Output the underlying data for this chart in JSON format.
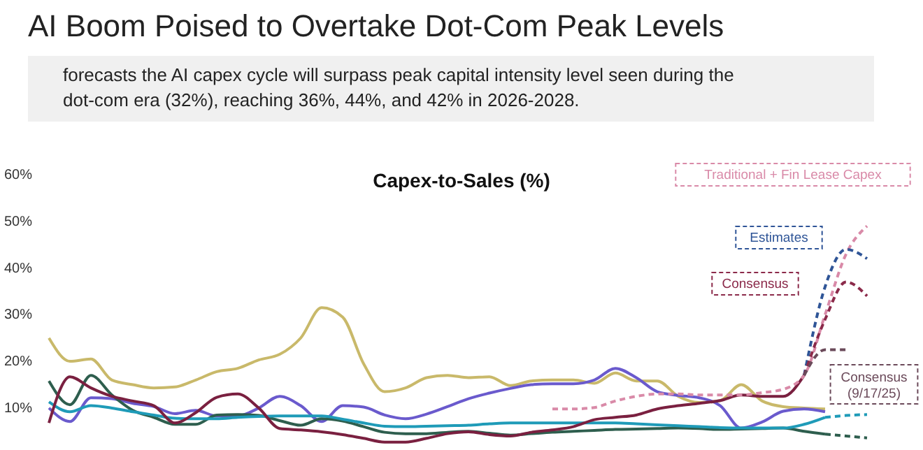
{
  "chart_data": {
    "type": "line",
    "title": "AI Boom Poised to Overtake Dot-Com Peak Levels",
    "subtitle": "Capex-to-Sales (%)",
    "annotations": [
      "forecasts the AI capex cycle will surpass peak capital intensity level seen during the dot-com era (32%), reaching 36%, 44%, and 42% in 2026-2028."
    ],
    "categories": [
      null,
      null,
      null,
      null,
      null,
      null,
      null,
      null,
      null,
      null,
      null,
      null,
      null,
      null,
      null,
      null,
      null,
      null,
      null,
      null,
      null,
      null,
      null,
      null,
      null,
      null,
      null,
      null,
      null,
      null,
      null,
      null,
      null,
      null,
      null,
      null,
      null,
      null,
      null,
      null
    ],
    "series": [
      {
        "color": "#c9b96a",
        "line_style": "solid",
        "values": [
          25,
          20,
          20.5,
          16,
          15,
          14.3,
          14.5,
          16,
          17.8,
          18.5,
          20.3,
          21.5,
          25,
          31.5,
          29.5,
          19.5,
          13.5,
          14.3,
          16.5,
          17,
          16.5,
          16.7,
          14.8,
          15.8,
          16,
          16,
          15.3,
          17.5,
          15.8,
          15.8,
          12.5,
          11.2,
          11.6,
          15,
          11.5,
          10.3,
          10,
          9.8,
          null,
          null
        ]
      },
      {
        "color": "#6a5acd",
        "line_style": "solid",
        "values": [
          10,
          7.1,
          12.2,
          12,
          11,
          10.3,
          8.8,
          9.5,
          8.3,
          8.3,
          10,
          12.5,
          10.5,
          7.1,
          10.5,
          10.2,
          8.5,
          7.7,
          8.7,
          10.3,
          12,
          13.2,
          14.2,
          15,
          15.2,
          15.2,
          16,
          18.5,
          16.5,
          13.5,
          12.7,
          12.2,
          10.5,
          5.7,
          7,
          9.3,
          9.8,
          9.2,
          null,
          null
        ]
      },
      {
        "color": "#2e5e4e",
        "line_style": "solid",
        "values": [
          15.8,
          10.7,
          17,
          12.8,
          9.5,
          8,
          6.5,
          6.5,
          8.5,
          8.6,
          8.4,
          7.3,
          6.3,
          7.7,
          7.2,
          6,
          4.8,
          4.5,
          4.5,
          4.8,
          5,
          4.6,
          4.2,
          4.5,
          4.8,
          5,
          5.2,
          5.4,
          5.5,
          5.6,
          5.7,
          5.6,
          5.4,
          5.5,
          5.6,
          5.7,
          5,
          4.4,
          null,
          null
        ]
      },
      {
        "color": "#2e5e4e",
        "line_style": "dashed",
        "values": [
          null,
          null,
          null,
          null,
          null,
          null,
          null,
          null,
          null,
          null,
          null,
          null,
          null,
          null,
          null,
          null,
          null,
          null,
          null,
          null,
          null,
          null,
          null,
          null,
          null,
          null,
          null,
          null,
          null,
          null,
          null,
          null,
          null,
          null,
          null,
          null,
          null,
          4.4,
          4,
          3.6
        ]
      },
      {
        "color": "#1f9bb8",
        "line_style": "solid",
        "values": [
          11.3,
          9.2,
          10.5,
          10,
          9.2,
          8.5,
          7.8,
          7.7,
          7.7,
          8,
          8.2,
          8.3,
          8.3,
          8.3,
          7.6,
          6.8,
          6.1,
          6,
          6.1,
          6.2,
          6.3,
          6.6,
          6.8,
          6.8,
          6.8,
          6.8,
          6.8,
          6.8,
          6.6,
          6.4,
          6.2,
          6,
          5.8,
          5.7,
          5.7,
          5.7,
          6.5,
          8,
          null,
          null
        ]
      },
      {
        "color": "#1f9bb8",
        "line_style": "dashed",
        "values": [
          null,
          null,
          null,
          null,
          null,
          null,
          null,
          null,
          null,
          null,
          null,
          null,
          null,
          null,
          null,
          null,
          null,
          null,
          null,
          null,
          null,
          null,
          null,
          null,
          null,
          null,
          null,
          null,
          null,
          null,
          null,
          null,
          null,
          null,
          null,
          null,
          null,
          8,
          8.4,
          8.6
        ]
      },
      {
        "color": "#7a2040",
        "line_style": "solid",
        "values": [
          6.8,
          16.7,
          14.3,
          12.5,
          11.5,
          10.5,
          6.8,
          9,
          12.3,
          13,
          10,
          5.6,
          5.3,
          4.9,
          4.3,
          3.5,
          2.7,
          2.7,
          3.5,
          4.5,
          4.9,
          4.3,
          4,
          4.8,
          5.3,
          6,
          7.5,
          8,
          8.5,
          9.8,
          10.5,
          11,
          11.6,
          12.8,
          12.5,
          12.5,
          17,
          null,
          null,
          null
        ]
      },
      {
        "name": "Traditional + Fin Lease Capex",
        "color": "#d98aa8",
        "line_style": "dashed",
        "values": [
          null,
          null,
          null,
          null,
          null,
          null,
          null,
          null,
          null,
          null,
          null,
          null,
          null,
          null,
          null,
          null,
          null,
          null,
          null,
          null,
          null,
          null,
          null,
          null,
          9.8,
          9.8,
          10.1,
          11.5,
          12.5,
          13,
          13,
          12.8,
          12.8,
          12.8,
          13.3,
          14,
          17,
          30,
          43,
          49
        ]
      },
      {
        "name": "Estimates",
        "color": "#2f5597",
        "line_style": "dashed",
        "values": [
          null,
          null,
          null,
          null,
          null,
          null,
          null,
          null,
          null,
          null,
          null,
          null,
          null,
          null,
          null,
          null,
          null,
          null,
          null,
          null,
          null,
          null,
          null,
          null,
          null,
          null,
          null,
          null,
          null,
          null,
          null,
          null,
          null,
          null,
          null,
          null,
          17,
          36,
          44,
          42
        ]
      },
      {
        "name": "Consensus",
        "color": "#8b2a4a",
        "line_style": "dashed",
        "values": [
          null,
          null,
          null,
          null,
          null,
          null,
          null,
          null,
          null,
          null,
          null,
          null,
          null,
          null,
          null,
          null,
          null,
          null,
          null,
          null,
          null,
          null,
          null,
          null,
          null,
          null,
          null,
          null,
          null,
          null,
          null,
          null,
          null,
          null,
          null,
          null,
          17,
          29,
          37,
          34
        ]
      },
      {
        "name": "Consensus (9/17/25)",
        "color": "#6b4a5a",
        "line_style": "dashed",
        "values": [
          null,
          null,
          null,
          null,
          null,
          null,
          null,
          null,
          null,
          null,
          null,
          null,
          null,
          null,
          null,
          null,
          null,
          null,
          null,
          null,
          null,
          null,
          null,
          null,
          null,
          null,
          null,
          null,
          null,
          null,
          null,
          null,
          null,
          null,
          null,
          null,
          17,
          22.5,
          22.5,
          null
        ]
      }
    ],
    "ylim": [
      1,
      60
    ],
    "yticks": [
      {
        "value": 10,
        "label": "10%"
      },
      {
        "value": 20,
        "label": "20%"
      },
      {
        "value": 30,
        "label": "30%"
      },
      {
        "value": 40,
        "label": "40%"
      },
      {
        "value": 50,
        "label": "50%"
      },
      {
        "value": 60,
        "label": "60%"
      }
    ],
    "grid": false,
    "tick_labels": "y"
  }
}
